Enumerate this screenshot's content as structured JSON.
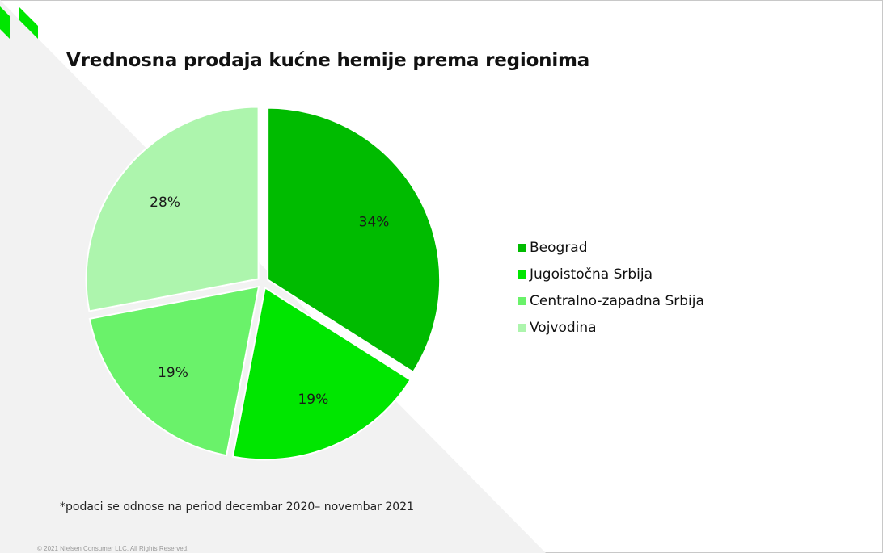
{
  "title": "Vrednosna prodaja kućne hemije prema regionima",
  "note": "*podaci se odnose na period decembar 2020– novembar 2021",
  "copyright": "© 2021 Nielsen Consumer LLC. All Rights Reserved.",
  "logo_icon": "nielsen-logo-icon",
  "colors": {
    "logo": "#00e600",
    "background_triangle": "#f2f2f2"
  },
  "chart_data": {
    "type": "pie",
    "title": "Vrednosna prodaja kućne hemije prema regionima",
    "categories": [
      "Beograd",
      "Jugoistočna Srbija",
      "Centralno-zapadna Srbija",
      "Vojvodina"
    ],
    "values": [
      34,
      19,
      19,
      28
    ],
    "labels": [
      "34%",
      "19%",
      "19%",
      "28%"
    ],
    "colors": [
      "#00bb00",
      "#00e600",
      "#6af26a",
      "#adf5ad"
    ],
    "legend_position": "right",
    "start": "12 o'clock, clockwise"
  }
}
